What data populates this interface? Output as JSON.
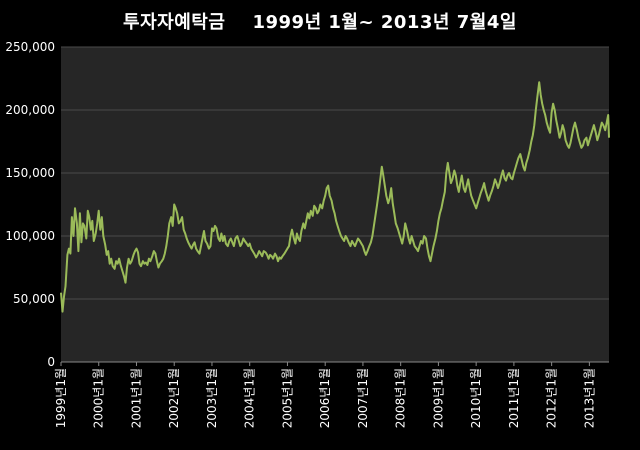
{
  "chart_data": {
    "type": "line",
    "title": "투자자예탁금    1999년 1월~ 2013년 7월4일",
    "xlabel": "",
    "ylabel": "",
    "ylim": [
      0,
      250000
    ],
    "yticks": [
      "0",
      "50,000",
      "100,000",
      "150,000",
      "200,000",
      "250,000"
    ],
    "ytick_values": [
      0,
      50000,
      100000,
      150000,
      200000,
      250000
    ],
    "xticks": [
      "1999년1월",
      "2000년1월",
      "2001년1월",
      "2002년1월",
      "2003년1월",
      "2004년1월",
      "2005년1월",
      "2006년1월",
      "2007년1월",
      "2008년1월",
      "2009년1월",
      "2010년1월",
      "2011년1월",
      "2012년1월",
      "2013년1월"
    ],
    "xtick_values": [
      1999.0,
      2000.0,
      2001.0,
      2002.0,
      2003.0,
      2004.0,
      2005.0,
      2006.0,
      2007.0,
      2008.0,
      2009.0,
      2010.0,
      2011.0,
      2012.0,
      2013.0
    ],
    "xlim": [
      1999.0,
      2013.52
    ],
    "grid": true,
    "line_color": "#9BBB59",
    "plot_background": "#262626",
    "series": [
      {
        "x": [
          1999.0,
          1999.04,
          1999.08,
          1999.12,
          1999.17,
          1999.21,
          1999.25,
          1999.29,
          1999.33,
          1999.37,
          1999.42,
          1999.46,
          1999.5,
          1999.54,
          1999.58,
          1999.62,
          1999.67,
          1999.71,
          1999.75,
          1999.79,
          1999.83,
          1999.87,
          1999.92,
          1999.96,
          2000.0,
          2000.04,
          2000.08,
          2000.12,
          2000.17,
          2000.21,
          2000.25,
          2000.29,
          2000.33,
          2000.37,
          2000.42,
          2000.46,
          2000.5,
          2000.54,
          2000.58,
          2000.62,
          2000.67,
          2000.71,
          2000.75,
          2000.79,
          2000.83,
          2000.87,
          2000.92,
          2000.96,
          2001.0,
          2001.04,
          2001.08,
          2001.12,
          2001.17,
          2001.21,
          2001.25,
          2001.29,
          2001.33,
          2001.37,
          2001.42,
          2001.46,
          2001.5,
          2001.54,
          2001.58,
          2001.62,
          2001.67,
          2001.71,
          2001.75,
          2001.79,
          2001.83,
          2001.87,
          2001.92,
          2001.96,
          2002.0,
          2002.04,
          2002.08,
          2002.12,
          2002.17,
          2002.21,
          2002.25,
          2002.29,
          2002.33,
          2002.37,
          2002.42,
          2002.46,
          2002.5,
          2002.54,
          2002.58,
          2002.62,
          2002.67,
          2002.71,
          2002.75,
          2002.79,
          2002.83,
          2002.87,
          2002.92,
          2002.96,
          2003.0,
          2003.04,
          2003.08,
          2003.12,
          2003.17,
          2003.21,
          2003.25,
          2003.29,
          2003.33,
          2003.37,
          2003.42,
          2003.46,
          2003.5,
          2003.54,
          2003.58,
          2003.62,
          2003.67,
          2003.71,
          2003.75,
          2003.79,
          2003.83,
          2003.87,
          2003.92,
          2003.96,
          2004.0,
          2004.04,
          2004.08,
          2004.12,
          2004.17,
          2004.21,
          2004.25,
          2004.29,
          2004.33,
          2004.37,
          2004.42,
          2004.46,
          2004.5,
          2004.54,
          2004.58,
          2004.62,
          2004.67,
          2004.71,
          2004.75,
          2004.79,
          2004.83,
          2004.87,
          2004.92,
          2004.96,
          2005.0,
          2005.04,
          2005.08,
          2005.12,
          2005.17,
          2005.21,
          2005.25,
          2005.29,
          2005.33,
          2005.37,
          2005.42,
          2005.46,
          2005.5,
          2005.54,
          2005.58,
          2005.62,
          2005.67,
          2005.71,
          2005.75,
          2005.79,
          2005.83,
          2005.87,
          2005.92,
          2005.96,
          2006.0,
          2006.04,
          2006.08,
          2006.12,
          2006.17,
          2006.21,
          2006.25,
          2006.29,
          2006.33,
          2006.37,
          2006.42,
          2006.46,
          2006.5,
          2006.54,
          2006.58,
          2006.62,
          2006.67,
          2006.71,
          2006.75,
          2006.79,
          2006.83,
          2006.87,
          2006.92,
          2006.96,
          2007.0,
          2007.04,
          2007.08,
          2007.12,
          2007.17,
          2007.21,
          2007.25,
          2007.29,
          2007.33,
          2007.37,
          2007.42,
          2007.46,
          2007.5,
          2007.54,
          2007.58,
          2007.62,
          2007.67,
          2007.71,
          2007.75,
          2007.79,
          2007.83,
          2007.87,
          2007.92,
          2007.96,
          2008.0,
          2008.04,
          2008.08,
          2008.12,
          2008.17,
          2008.21,
          2008.25,
          2008.29,
          2008.33,
          2008.37,
          2008.42,
          2008.46,
          2008.5,
          2008.54,
          2008.58,
          2008.62,
          2008.67,
          2008.71,
          2008.75,
          2008.79,
          2008.83,
          2008.87,
          2008.92,
          2008.96,
          2009.0,
          2009.04,
          2009.08,
          2009.12,
          2009.17,
          2009.21,
          2009.25,
          2009.29,
          2009.33,
          2009.37,
          2009.42,
          2009.46,
          2009.5,
          2009.54,
          2009.58,
          2009.62,
          2009.67,
          2009.71,
          2009.75,
          2009.79,
          2009.83,
          2009.87,
          2009.92,
          2009.96,
          2010.0,
          2010.04,
          2010.08,
          2010.12,
          2010.17,
          2010.21,
          2010.25,
          2010.29,
          2010.33,
          2010.37,
          2010.42,
          2010.46,
          2010.5,
          2010.54,
          2010.58,
          2010.62,
          2010.67,
          2010.71,
          2010.75,
          2010.79,
          2010.83,
          2010.87,
          2010.92,
          2010.96,
          2011.0,
          2011.04,
          2011.08,
          2011.12,
          2011.17,
          2011.21,
          2011.25,
          2011.29,
          2011.33,
          2011.37,
          2011.42,
          2011.46,
          2011.5,
          2011.54,
          2011.58,
          2011.62,
          2011.67,
          2011.71,
          2011.75,
          2011.79,
          2011.83,
          2011.87,
          2011.92,
          2011.96,
          2012.0,
          2012.04,
          2012.08,
          2012.12,
          2012.17,
          2012.21,
          2012.25,
          2012.29,
          2012.33,
          2012.37,
          2012.42,
          2012.46,
          2012.5,
          2012.54,
          2012.58,
          2012.62,
          2012.67,
          2012.71,
          2012.75,
          2012.79,
          2012.83,
          2012.87,
          2012.92,
          2012.96,
          2013.0,
          2013.04,
          2013.08,
          2013.12,
          2013.17,
          2013.21,
          2013.25,
          2013.29,
          2013.33,
          2013.37,
          2013.42,
          2013.46,
          2013.5,
          2013.52
        ],
        "values": [
          55000,
          40000,
          52000,
          60000,
          85000,
          90000,
          86000,
          115000,
          100000,
          122000,
          110000,
          88000,
          118000,
          95000,
          110000,
          108000,
          98000,
          120000,
          115000,
          105000,
          112000,
          96000,
          102000,
          110000,
          120000,
          105000,
          115000,
          100000,
          93000,
          85000,
          88000,
          78000,
          82000,
          76000,
          74000,
          80000,
          78000,
          82000,
          77000,
          73000,
          68000,
          63000,
          75000,
          82000,
          78000,
          80000,
          85000,
          88000,
          90000,
          87000,
          78000,
          76000,
          80000,
          78000,
          79000,
          77000,
          82000,
          80000,
          84000,
          88000,
          86000,
          80000,
          75000,
          78000,
          80000,
          82000,
          86000,
          92000,
          100000,
          110000,
          115000,
          108000,
          125000,
          122000,
          118000,
          110000,
          112000,
          115000,
          105000,
          102000,
          98000,
          95000,
          92000,
          90000,
          93000,
          95000,
          90000,
          88000,
          86000,
          92000,
          98000,
          104000,
          96000,
          94000,
          90000,
          92000,
          106000,
          104000,
          108000,
          106000,
          98000,
          96000,
          102000,
          96000,
          100000,
          94000,
          92000,
          96000,
          98000,
          95000,
          92000,
          98000,
          100000,
          96000,
          92000,
          94000,
          98000,
          96000,
          94000,
          92000,
          94000,
          90000,
          88000,
          86000,
          83000,
          85000,
          88000,
          86000,
          84000,
          88000,
          87000,
          85000,
          82000,
          85000,
          84000,
          82000,
          86000,
          84000,
          80000,
          83000,
          82000,
          84000,
          86000,
          88000,
          90000,
          92000,
          100000,
          105000,
          98000,
          94000,
          102000,
          98000,
          96000,
          104000,
          110000,
          106000,
          112000,
          118000,
          114000,
          120000,
          116000,
          124000,
          122000,
          118000,
          120000,
          125000,
          122000,
          128000,
          132000,
          138000,
          140000,
          132000,
          128000,
          122000,
          118000,
          112000,
          108000,
          104000,
          100000,
          98000,
          96000,
          100000,
          98000,
          95000,
          92000,
          96000,
          94000,
          92000,
          95000,
          98000,
          96000,
          94000,
          92000,
          88000,
          85000,
          88000,
          92000,
          95000,
          100000,
          108000,
          116000,
          124000,
          135000,
          145000,
          155000,
          148000,
          140000,
          132000,
          126000,
          130000,
          138000,
          126000,
          118000,
          110000,
          106000,
          102000,
          98000,
          94000,
          100000,
          110000,
          104000,
          98000,
          94000,
          100000,
          96000,
          92000,
          90000,
          88000,
          92000,
          96000,
          94000,
          100000,
          98000,
          90000,
          84000,
          80000,
          86000,
          92000,
          98000,
          104000,
          112000,
          118000,
          122000,
          128000,
          135000,
          150000,
          158000,
          150000,
          142000,
          145000,
          152000,
          148000,
          140000,
          135000,
          142000,
          148000,
          138000,
          135000,
          140000,
          145000,
          138000,
          132000,
          128000,
          125000,
          122000,
          126000,
          130000,
          134000,
          138000,
          142000,
          136000,
          132000,
          128000,
          132000,
          136000,
          140000,
          145000,
          142000,
          138000,
          142000,
          148000,
          152000,
          146000,
          144000,
          148000,
          150000,
          146000,
          145000,
          150000,
          154000,
          158000,
          162000,
          165000,
          160000,
          155000,
          152000,
          158000,
          162000,
          168000,
          175000,
          180000,
          188000,
          200000,
          210000,
          222000,
          212000,
          205000,
          200000,
          196000,
          190000,
          185000,
          182000,
          198000,
          205000,
          200000,
          192000,
          185000,
          178000,
          182000,
          188000,
          184000,
          176000,
          172000,
          170000,
          174000,
          180000,
          186000,
          190000,
          184000,
          178000,
          174000,
          170000,
          172000,
          176000,
          178000,
          172000,
          176000,
          180000,
          184000,
          188000,
          182000,
          176000,
          180000,
          185000,
          190000,
          188000,
          184000,
          190000,
          196000,
          178000
        ]
      }
    ]
  }
}
